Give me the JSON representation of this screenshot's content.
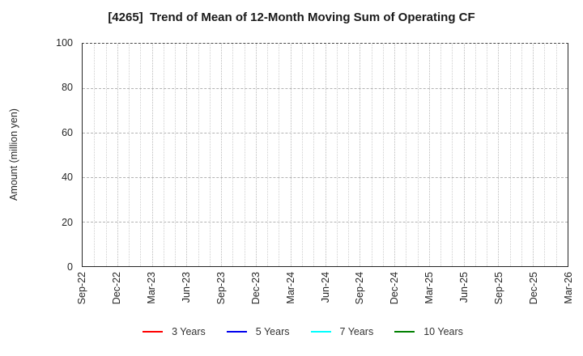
{
  "chart_data": {
    "type": "line",
    "title": "[4265]  Trend of Mean of 12-Month Moving Sum of Operating CF",
    "ylabel": "Amount (million yen)",
    "ylim": [
      0,
      100
    ],
    "y_ticks": [
      0,
      20,
      40,
      60,
      80,
      100
    ],
    "x_tick_labels": [
      "Sep-22",
      "Dec-22",
      "Mar-23",
      "Jun-23",
      "Sep-23",
      "Dec-23",
      "Mar-24",
      "Jun-24",
      "Sep-24",
      "Dec-24",
      "Mar-25",
      "Jun-25",
      "Sep-25",
      "Dec-25",
      "Mar-26"
    ],
    "x_months_total": 42,
    "grid": "dotted monthly vertical lines; dashed horizontal lines every 20 units",
    "legend_position": "bottom-center",
    "series": [
      {
        "name": "3 Years",
        "color": "#ff0000",
        "values": []
      },
      {
        "name": "5 Years",
        "color": "#0000ee",
        "values": []
      },
      {
        "name": "7 Years",
        "color": "#00ffff",
        "values": []
      },
      {
        "name": "10 Years",
        "color": "#008000",
        "values": []
      }
    ],
    "note": "no data lines plotted; axes and grid are empty"
  },
  "colors": {
    "frame": "#262626",
    "grid_vertical": "#d0d0d0",
    "grid_horizontal": "#b3b3b3",
    "text": "#262626",
    "background": "#ffffff"
  }
}
